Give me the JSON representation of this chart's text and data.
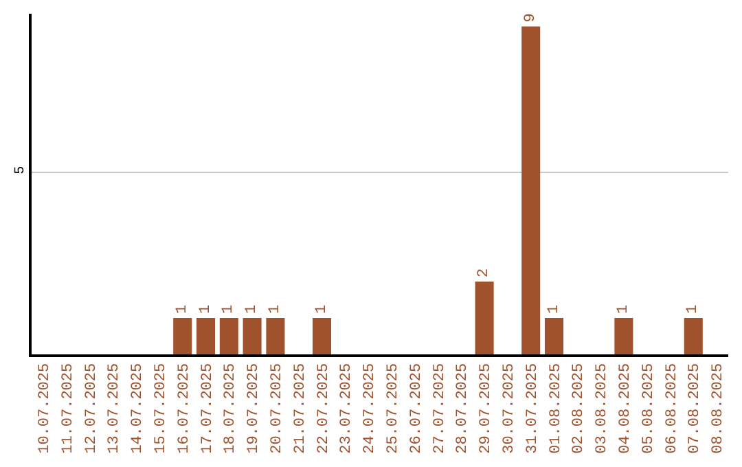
{
  "chart_data": {
    "type": "bar",
    "categories": [
      "10.07.2025",
      "11.07.2025",
      "12.07.2025",
      "13.07.2025",
      "14.07.2025",
      "15.07.2025",
      "16.07.2025",
      "17.07.2025",
      "18.07.2025",
      "19.07.2025",
      "20.07.2025",
      "21.07.2025",
      "22.07.2025",
      "23.07.2025",
      "24.07.2025",
      "25.07.2025",
      "26.07.2025",
      "27.07.2025",
      "28.07.2025",
      "29.07.2025",
      "30.07.2025",
      "31.07.2025",
      "01.08.2025",
      "02.08.2025",
      "03.08.2025",
      "04.08.2025",
      "05.08.2025",
      "06.08.2025",
      "07.08.2025",
      "08.08.2025"
    ],
    "values": [
      0,
      0,
      0,
      0,
      0,
      0,
      1,
      1,
      1,
      1,
      1,
      0,
      1,
      0,
      0,
      0,
      0,
      0,
      0,
      2,
      0,
      9,
      1,
      0,
      0,
      1,
      0,
      0,
      1,
      0
    ],
    "value_labels": [
      null,
      null,
      null,
      null,
      null,
      null,
      "1",
      "1",
      "1",
      "1",
      "1",
      null,
      "1",
      null,
      null,
      null,
      null,
      null,
      null,
      "2",
      null,
      "9",
      "1",
      null,
      null,
      "1",
      null,
      null,
      "1",
      null
    ],
    "color": "#a0522d",
    "ylim": [
      0,
      9.35
    ],
    "yticks": [
      5
    ],
    "grid": "y"
  }
}
